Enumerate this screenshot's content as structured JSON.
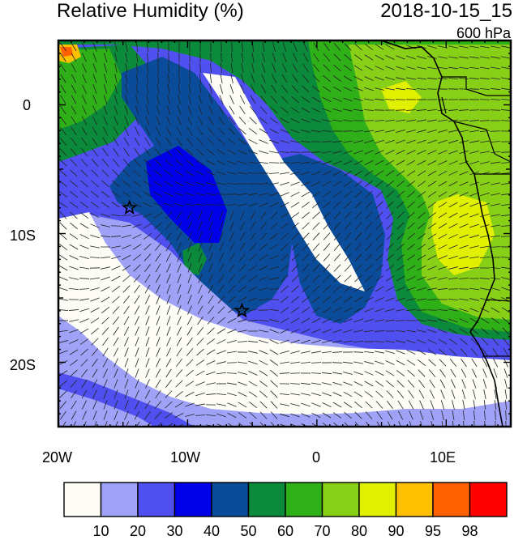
{
  "title_left": "Relative Humidity (%)",
  "title_right": "2018-10-15_15",
  "level_label": "600 hPa",
  "lon_ticks": [
    "20W",
    "10W",
    "0",
    "10E"
  ],
  "lat_ticks": [
    "0",
    "10S",
    "20S"
  ],
  "colorbar": {
    "labels": [
      "10",
      "20",
      "30",
      "40",
      "50",
      "60",
      "70",
      "80",
      "90",
      "95",
      "98"
    ],
    "colors": [
      "#fdfdf5",
      "#a0a2f8",
      "#5050f0",
      "#0000e8",
      "#0a4c9a",
      "#0a8a3a",
      "#30b018",
      "#88d018",
      "#e0f000",
      "#ffc000",
      "#ff6000",
      "#ff0000"
    ]
  },
  "markers": [
    {
      "name": "star-marker-1",
      "lon": -14.5,
      "lat": -8
    },
    {
      "name": "star-marker-2",
      "lon": -5.8,
      "lat": -16
    }
  ]
}
